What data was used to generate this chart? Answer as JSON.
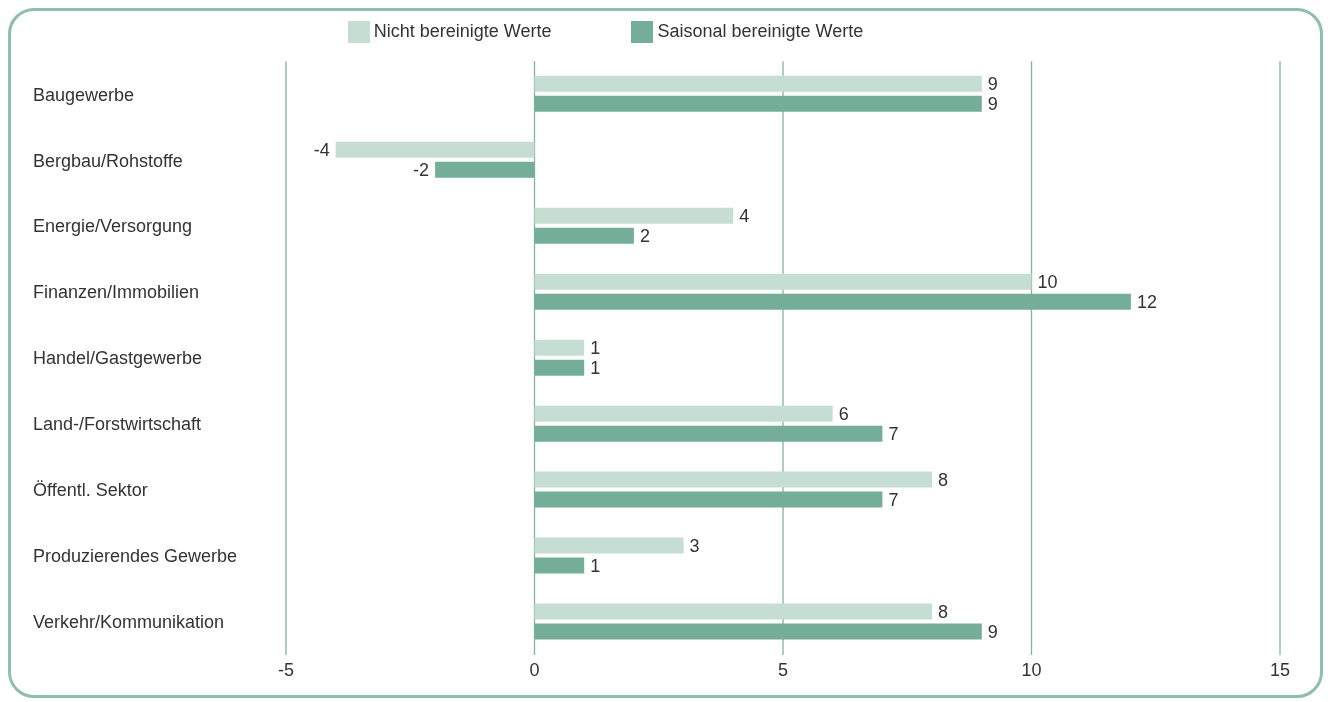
{
  "chart_data": {
    "type": "bar",
    "orientation": "horizontal",
    "categories": [
      "Baugewerbe",
      "Bergbau/Rohstoffe",
      "Energie/Versorgung",
      "Finanzen/Immobilien",
      "Handel/Gastgewerbe",
      "Land-/Forstwirtschaft",
      "Öffentl. Sektor",
      "Produzierendes Gewerbe",
      "Verkehr/Kommunikation"
    ],
    "series": [
      {
        "name": "Nicht bereinigte Werte",
        "color": "#c5ddd2",
        "values": [
          9,
          -4,
          4,
          10,
          1,
          6,
          8,
          3,
          8
        ]
      },
      {
        "name": "Saisonal bereinigte Werte",
        "color": "#74ae98",
        "values": [
          9,
          -2,
          2,
          12,
          1,
          7,
          7,
          1,
          9
        ]
      }
    ],
    "xlim": [
      -5,
      15
    ],
    "xticks": [
      -5,
      0,
      5,
      10,
      15
    ],
    "grid": "x",
    "legend": "top",
    "data_labels": true
  }
}
